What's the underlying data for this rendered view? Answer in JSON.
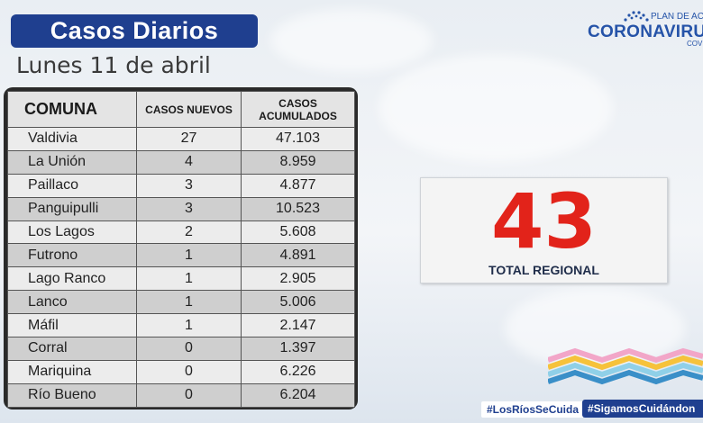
{
  "header": {
    "title": "Casos Diarios",
    "date": "Lunes 11 de abril"
  },
  "logo": {
    "plan": "PLAN DE ACC",
    "brand": "CORONAVIRU",
    "sub": "COVI"
  },
  "table": {
    "headers": {
      "comuna": "COMUNA",
      "nuevos": "CASOS NUEVOS",
      "acumulados_1": "CASOS",
      "acumulados_2": "ACUMULADOS"
    },
    "rows": [
      {
        "comuna": "Valdivia",
        "nuevos": "27",
        "acumulados": "47.103"
      },
      {
        "comuna": "La Unión",
        "nuevos": "4",
        "acumulados": "8.959"
      },
      {
        "comuna": "Paillaco",
        "nuevos": "3",
        "acumulados": "4.877"
      },
      {
        "comuna": "Panguipulli",
        "nuevos": "3",
        "acumulados": "10.523"
      },
      {
        "comuna": "Los Lagos",
        "nuevos": "2",
        "acumulados": "5.608"
      },
      {
        "comuna": "Futrono",
        "nuevos": "1",
        "acumulados": "4.891"
      },
      {
        "comuna": "Lago Ranco",
        "nuevos": "1",
        "acumulados": "2.905"
      },
      {
        "comuna": "Lanco",
        "nuevos": "1",
        "acumulados": "5.006"
      },
      {
        "comuna": "Máfil",
        "nuevos": "1",
        "acumulados": "2.147"
      },
      {
        "comuna": "Corral",
        "nuevos": "0",
        "acumulados": "1.397"
      },
      {
        "comuna": "Mariquina",
        "nuevos": "0",
        "acumulados": "6.226"
      },
      {
        "comuna": "Río Bueno",
        "nuevos": "0",
        "acumulados": "6.204"
      }
    ]
  },
  "total": {
    "value": "43",
    "label": "TOTAL REGIONAL"
  },
  "hashtags": {
    "tag1": "#LosRíosSeCuida",
    "tag2": "#SigamosCuidándon"
  },
  "colors": {
    "brand_blue": "#1f3f8f",
    "total_red": "#e2231a"
  }
}
